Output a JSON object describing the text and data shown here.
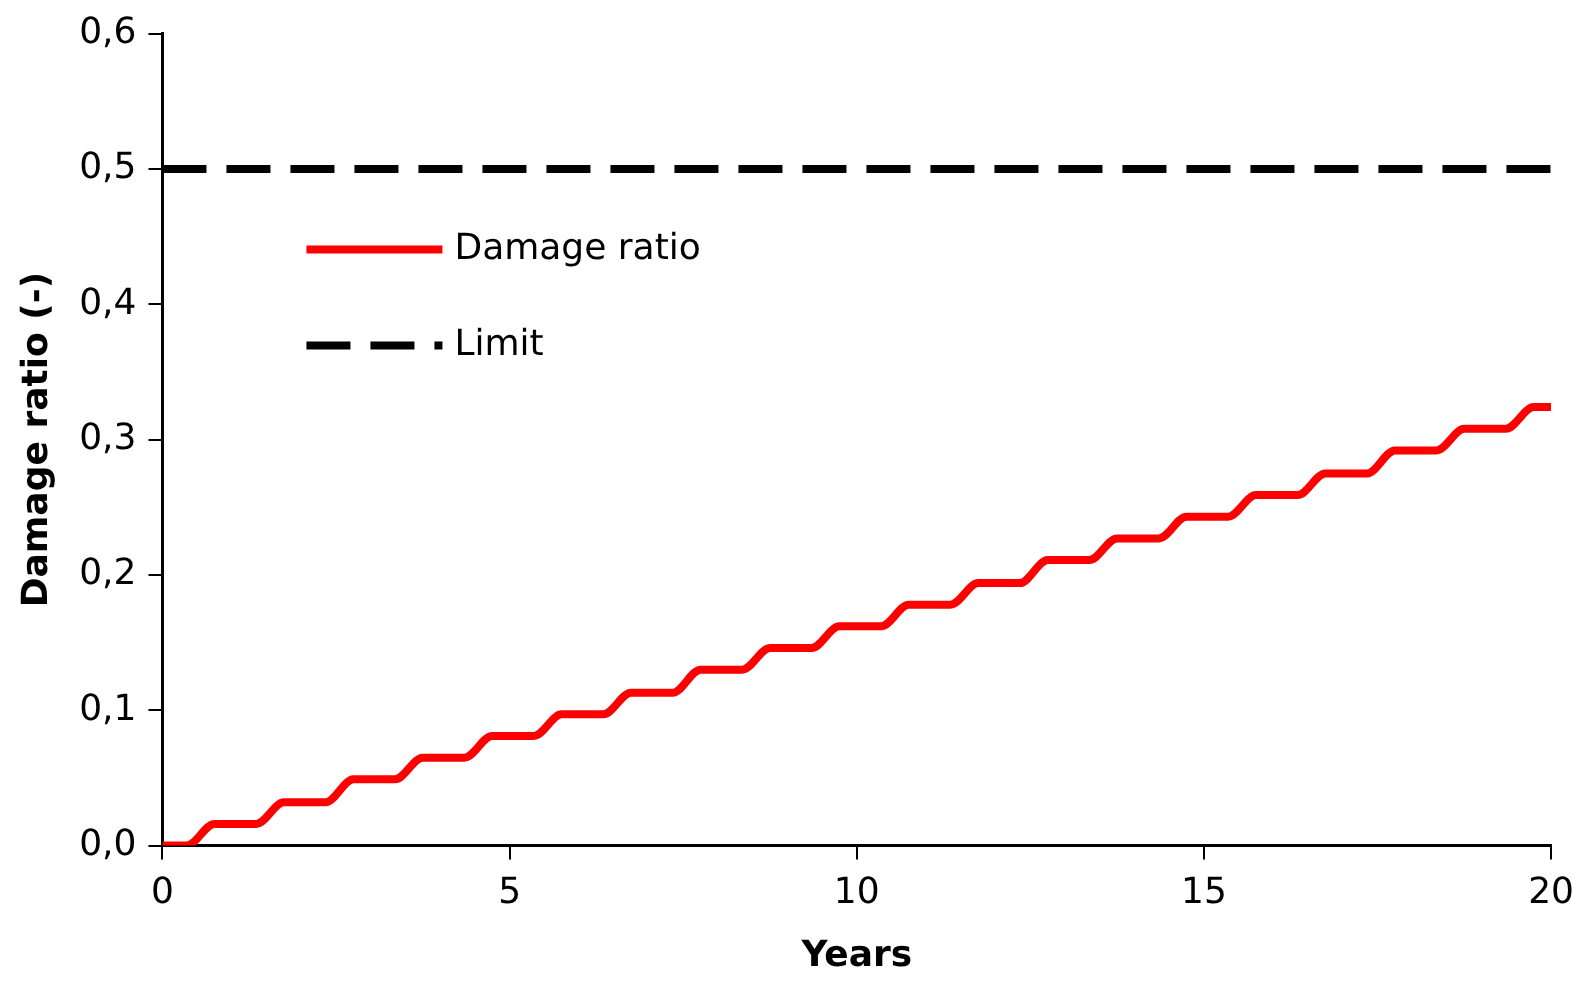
{
  "chart_data": {
    "type": "line",
    "xlabel": "Years",
    "ylabel": "Damage ratio (-)",
    "xlim": [
      0,
      20
    ],
    "xticks": [
      0,
      5,
      10,
      15,
      20
    ],
    "ylim": [
      0,
      0.6
    ],
    "yticks": [
      {
        "value": 0,
        "label": "0,0"
      },
      {
        "value": 0.1,
        "label": "0,1"
      },
      {
        "value": 0.2,
        "label": "0,2"
      },
      {
        "value": 0.3,
        "label": "0,3"
      },
      {
        "value": 0.4,
        "label": "0,4"
      },
      {
        "value": 0.5,
        "label": "0,5"
      },
      {
        "value": 0.6,
        "label": "0,6"
      }
    ],
    "grid": false,
    "legend": "top left",
    "marker": "none",
    "series": [
      {
        "name": "Damage ratio",
        "color": "#ff0000",
        "line_style": "solid",
        "x": [
          0,
          0.35,
          0.75,
          1.35,
          1.75,
          2.35,
          2.75,
          3.35,
          3.75,
          4.35,
          4.75,
          5.35,
          5.75,
          6.35,
          6.75,
          7.35,
          7.75,
          8.35,
          8.75,
          9.35,
          9.75,
          10.35,
          10.75,
          11.35,
          11.75,
          12.35,
          12.75,
          13.35,
          13.75,
          14.35,
          14.75,
          15.35,
          15.75,
          16.35,
          16.75,
          17.35,
          17.75,
          18.35,
          18.75,
          19.35,
          19.75,
          20
        ],
        "values": [
          0,
          0,
          0.016,
          0.016,
          0.032,
          0.032,
          0.049,
          0.049,
          0.065,
          0.065,
          0.081,
          0.081,
          0.097,
          0.097,
          0.113,
          0.113,
          0.13,
          0.13,
          0.146,
          0.146,
          0.162,
          0.162,
          0.178,
          0.178,
          0.194,
          0.194,
          0.211,
          0.211,
          0.227,
          0.227,
          0.243,
          0.243,
          0.259,
          0.259,
          0.275,
          0.275,
          0.292,
          0.292,
          0.308,
          0.308,
          0.324,
          0.324
        ]
      },
      {
        "name": "Limit",
        "color": "#000000",
        "line_style": "dashed",
        "x": [
          0,
          20
        ],
        "values": [
          0.5,
          0.5
        ]
      }
    ]
  }
}
